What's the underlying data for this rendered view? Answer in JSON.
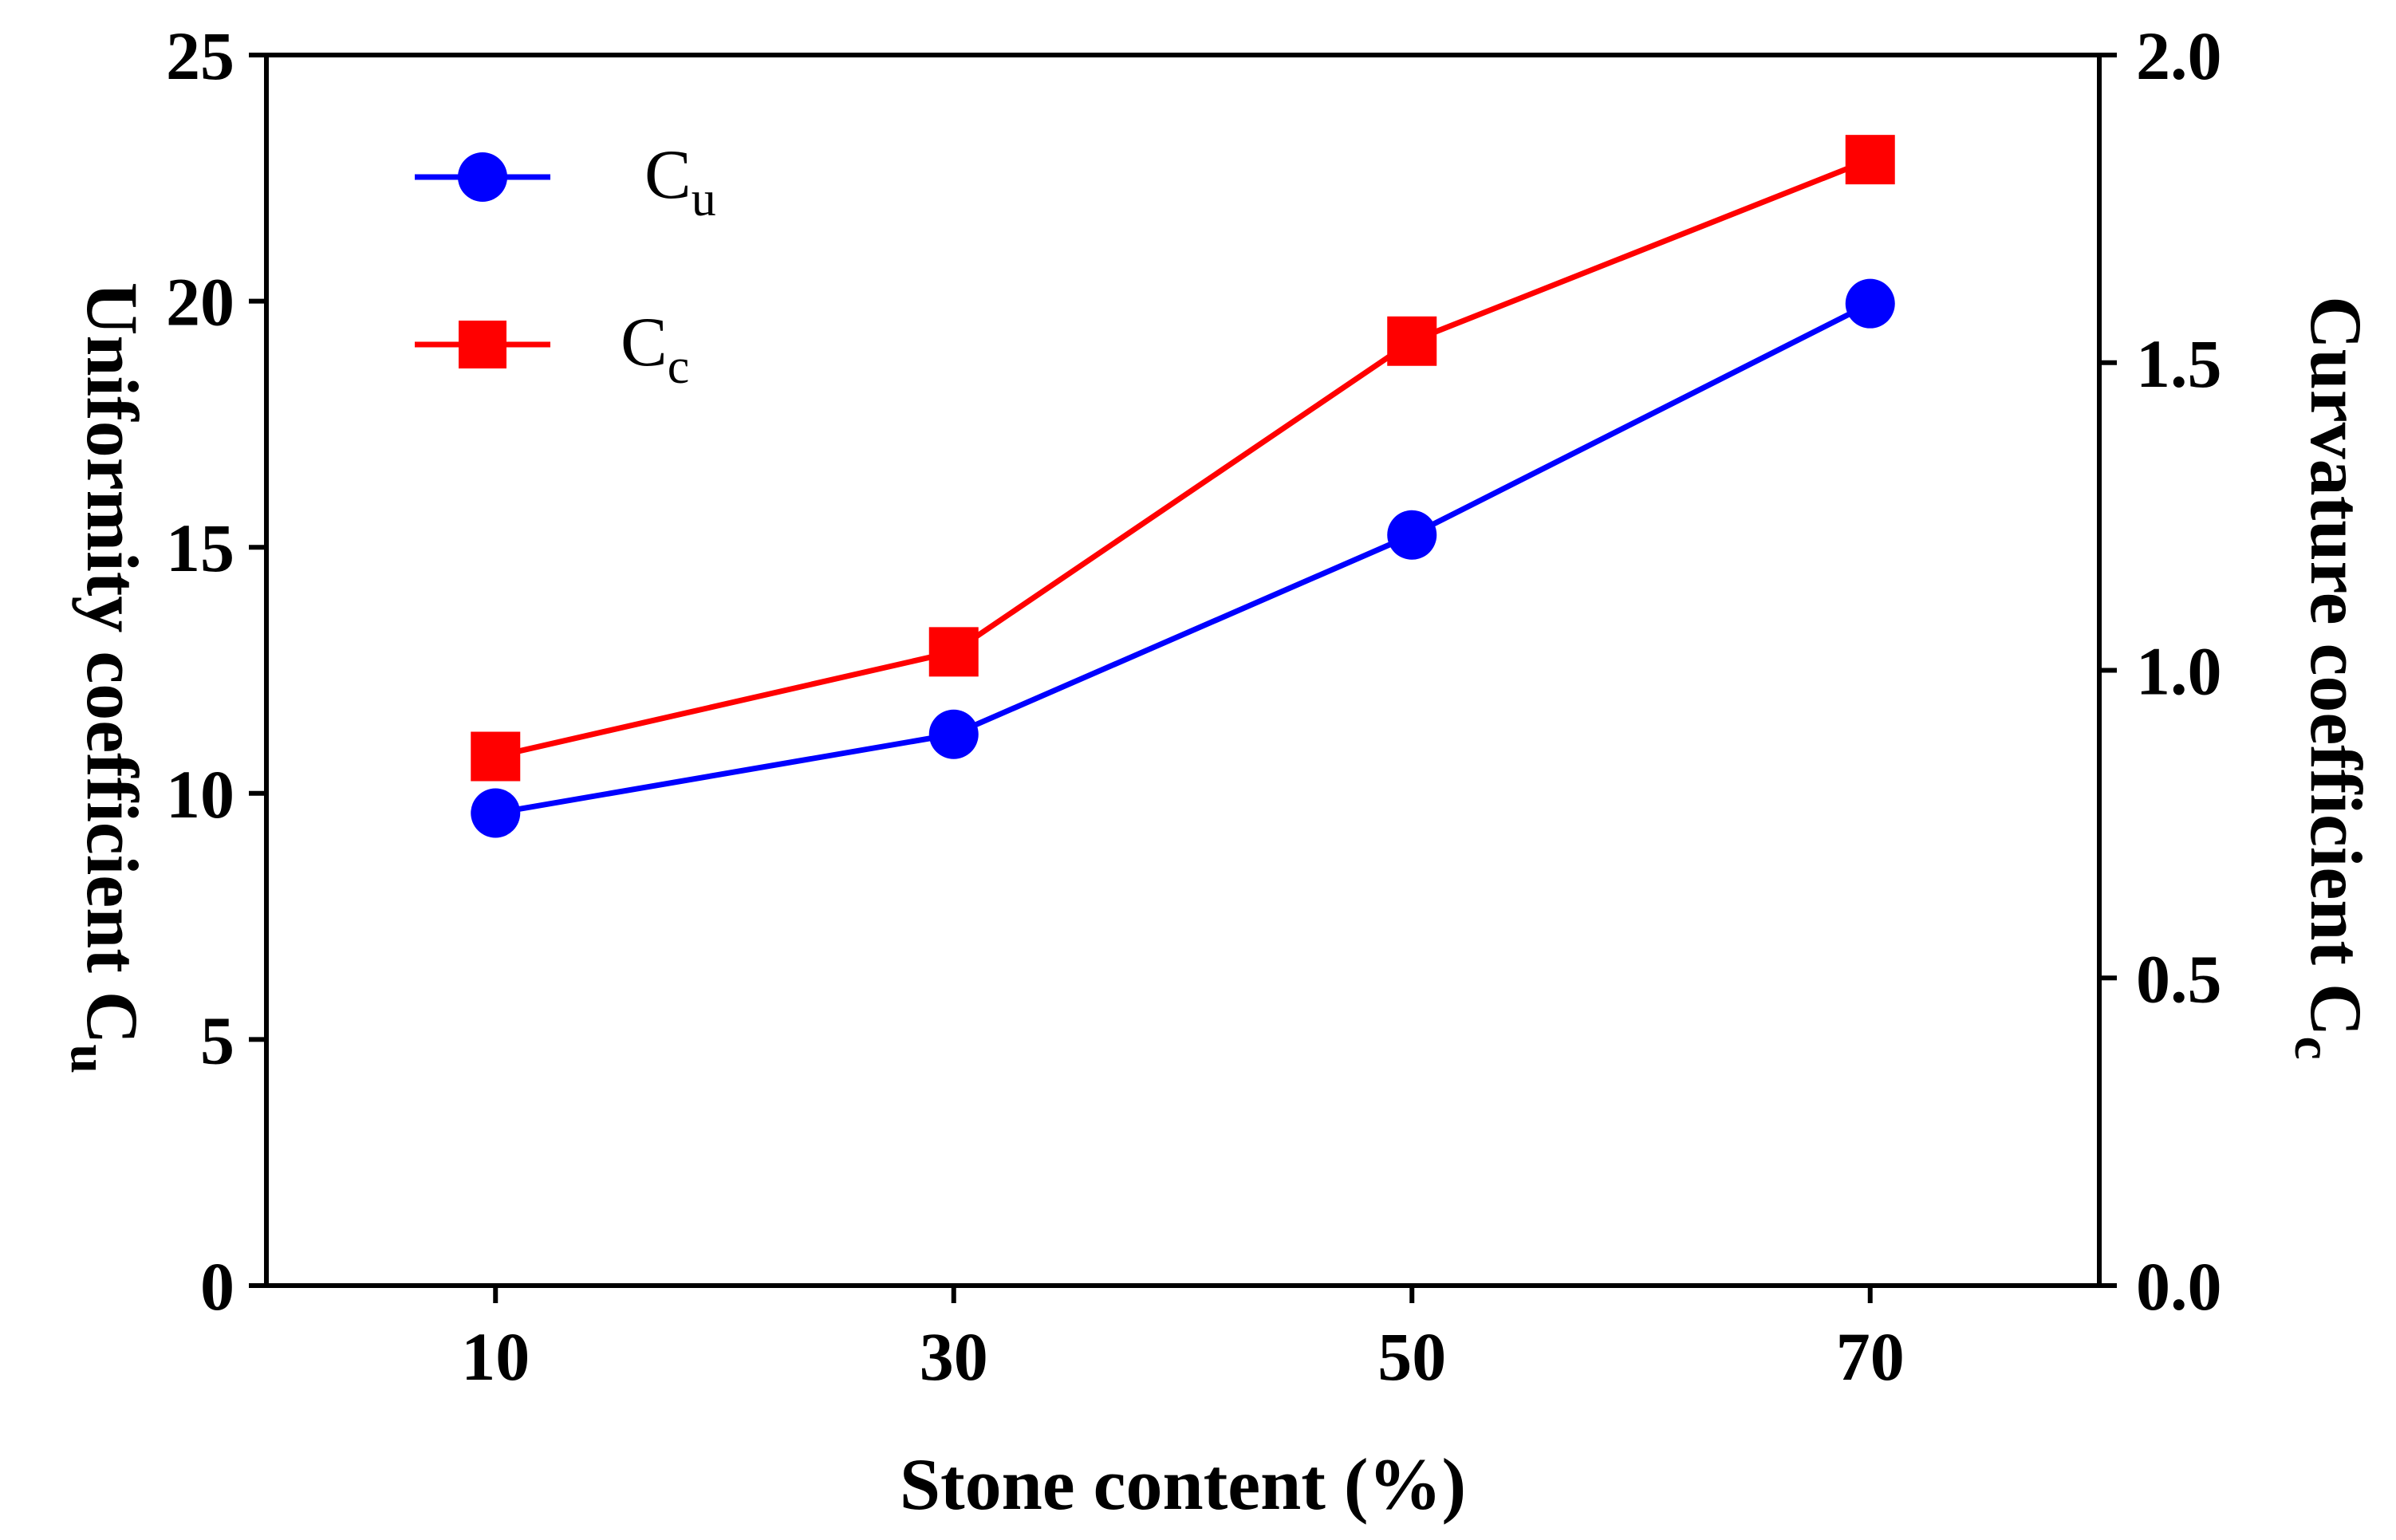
{
  "chart_data": {
    "type": "line",
    "x": [
      10,
      30,
      50,
      70
    ],
    "xlabel": "Stone content (%)",
    "x_ticks": [
      "10",
      "30",
      "50",
      "70"
    ],
    "xlim": [
      0,
      80
    ],
    "y_left": {
      "label_main": "Uniformity coefficient  C",
      "label_sub": "u",
      "lim": [
        0,
        25
      ],
      "ticks": [
        "0",
        "5",
        "10",
        "15",
        "20",
        "25"
      ]
    },
    "y_right": {
      "label_main": "Curvature coefficient C",
      "label_sub": "c",
      "lim": [
        0.0,
        2.0
      ],
      "ticks": [
        "0.0",
        "0.5",
        "1.0",
        "1.5",
        "2.0"
      ]
    },
    "series": [
      {
        "name": "Cu",
        "legend_main": "C",
        "legend_sub": "u",
        "axis": "left",
        "marker": "circle",
        "color": "#0000ff",
        "values": [
          9.6,
          11.2,
          15.25,
          19.95
        ]
      },
      {
        "name": "Cc",
        "legend_main": "C",
        "legend_sub": "c",
        "axis": "right",
        "marker": "square",
        "color": "#ff0000",
        "values": [
          0.86,
          1.03,
          1.535,
          1.83
        ]
      }
    ],
    "legend_position": "top-left",
    "grid": false
  }
}
